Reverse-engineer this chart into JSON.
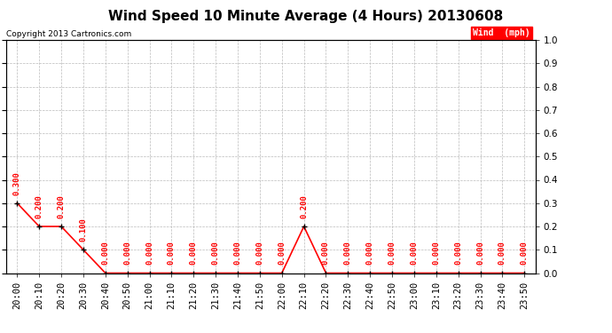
{
  "title": "Wind Speed 10 Minute Average (4 Hours) 20130608",
  "copyright": "Copyright 2013 Cartronics.com",
  "legend_label": "Wind  (mph)",
  "legend_bg": "#ff0000",
  "legend_fg": "#ffffff",
  "line_color": "#ff0000",
  "marker_color": "#000000",
  "ylim": [
    0.0,
    1.0
  ],
  "yticks": [
    0.0,
    0.1,
    0.2,
    0.3,
    0.4,
    0.5,
    0.6,
    0.7,
    0.8,
    0.9,
    1.0
  ],
  "x_labels": [
    "20:00",
    "20:10",
    "20:20",
    "20:30",
    "20:40",
    "20:50",
    "21:00",
    "21:10",
    "21:20",
    "21:30",
    "21:40",
    "21:50",
    "22:00",
    "22:10",
    "22:20",
    "22:30",
    "22:40",
    "22:50",
    "23:00",
    "23:10",
    "23:20",
    "23:30",
    "23:40",
    "23:50"
  ],
  "values": [
    0.3,
    0.2,
    0.2,
    0.1,
    0.0,
    0.0,
    0.0,
    0.0,
    0.0,
    0.0,
    0.0,
    0.0,
    0.0,
    0.2,
    0.0,
    0.0,
    0.0,
    0.0,
    0.0,
    0.0,
    0.0,
    0.0,
    0.0,
    0.0
  ],
  "background_color": "#ffffff",
  "grid_color": "#bbbbbb",
  "title_fontsize": 11,
  "annot_fontsize": 6.5,
  "tick_fontsize": 7.5
}
